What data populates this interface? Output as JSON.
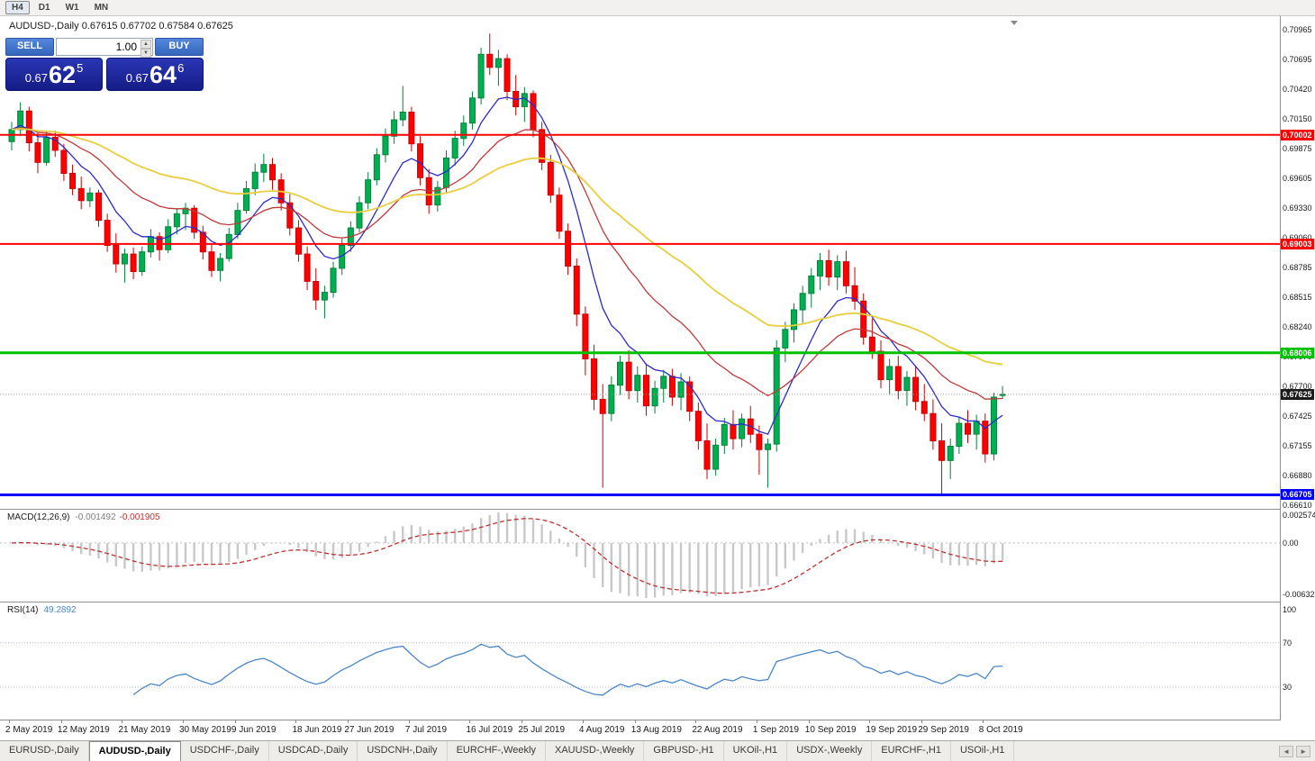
{
  "toolbar": {
    "timeframes": [
      {
        "label": "H4",
        "active": true
      },
      {
        "label": "D1",
        "active": false
      },
      {
        "label": "W1",
        "active": false
      },
      {
        "label": "MN",
        "active": false
      }
    ]
  },
  "chart_header": {
    "symbol_period": "AUDUSD-,Daily",
    "ohlc": "0.67615 0.67702 0.67584 0.67625"
  },
  "trade_panel": {
    "sell_label": "SELL",
    "buy_label": "BUY",
    "volume": "1.00",
    "sell_price": {
      "prefix": "0.67",
      "big": "62",
      "sup": "5"
    },
    "buy_price": {
      "prefix": "0.67",
      "big": "64",
      "sup": "6"
    }
  },
  "main_panel": {
    "price_ticks": [
      "0.70965",
      "0.70695",
      "0.70420",
      "0.70150",
      "0.69875",
      "0.69605",
      "0.69330",
      "0.69060",
      "0.68785",
      "0.68515",
      "0.68240",
      "0.67970",
      "0.67700",
      "0.67425",
      "0.67155",
      "0.66880",
      "0.66610"
    ],
    "hlines": [
      {
        "value": 0.70002,
        "label": "0.70002",
        "color": "#ff0000",
        "width": 2
      },
      {
        "value": 0.69003,
        "label": "0.69003",
        "color": "#ff0000",
        "width": 2
      },
      {
        "value": 0.68006,
        "label": "0.68006",
        "color": "#00c000",
        "width": 3
      },
      {
        "value": 0.66705,
        "label": "0.66705",
        "color": "#0000ff",
        "width": 3
      }
    ],
    "current_price": {
      "value": 0.67625,
      "label": "0.67625",
      "tag_color": "#1a1a1a"
    }
  },
  "macd_panel": {
    "label": "MACD(12,26,9)",
    "main_value": "-0.001492",
    "signal_value": "-0.001905",
    "axis_labels": {
      "max": "0.002574",
      "zero": "0.00",
      "min": "-0.006326"
    }
  },
  "rsi_panel": {
    "label": "RSI(14)",
    "value": "49.2892",
    "axis_labels": [
      {
        "text": "100",
        "value": 100
      },
      {
        "text": "70",
        "value": 70
      },
      {
        "text": "30",
        "value": 30
      }
    ],
    "levels": [
      70,
      30
    ]
  },
  "time_axis": {
    "ticks": [
      {
        "label": "2 May 2019",
        "index": 0
      },
      {
        "label": "12 May 2019",
        "index": 6
      },
      {
        "label": "21 May 2019",
        "index": 13
      },
      {
        "label": "30 May 2019",
        "index": 20
      },
      {
        "label": "9 Jun 2019",
        "index": 26
      },
      {
        "label": "18 Jun 2019",
        "index": 33
      },
      {
        "label": "27 Jun 2019",
        "index": 39
      },
      {
        "label": "7 Jul 2019",
        "index": 46
      },
      {
        "label": "16 Jul 2019",
        "index": 53
      },
      {
        "label": "25 Jul 2019",
        "index": 59
      },
      {
        "label": "4 Aug 2019",
        "index": 66
      },
      {
        "label": "13 Aug 2019",
        "index": 72
      },
      {
        "label": "22 Aug 2019",
        "index": 79
      },
      {
        "label": "1 Sep 2019",
        "index": 86
      },
      {
        "label": "10 Sep 2019",
        "index": 92
      },
      {
        "label": "19 Sep 2019",
        "index": 99
      },
      {
        "label": "29 Sep 2019",
        "index": 105
      },
      {
        "label": "8 Oct 2019",
        "index": 112
      }
    ]
  },
  "tab_bar": {
    "scroll_left_icon": "◄",
    "scroll_right_icon": "►",
    "tabs": [
      {
        "label": "EURUSD-,Daily",
        "active": false
      },
      {
        "label": "AUDUSD-,Daily",
        "active": true
      },
      {
        "label": "USDCHF-,Daily",
        "active": false
      },
      {
        "label": "USDCAD-,Daily",
        "active": false
      },
      {
        "label": "USDCNH-,Daily",
        "active": false
      },
      {
        "label": "EURCHF-,Weekly",
        "active": false
      },
      {
        "label": "XAUUSD-,Weekly",
        "active": false
      },
      {
        "label": "GBPUSD-,H1",
        "active": false
      },
      {
        "label": "UKOil-,H1",
        "active": false
      },
      {
        "label": "USDX-,Weekly",
        "active": false
      },
      {
        "label": "EURCHF-,H1",
        "active": false
      },
      {
        "label": "USOil-,H1",
        "active": false
      }
    ]
  },
  "chart_data": {
    "type": "candlestick",
    "title": "AUDUSD-,Daily",
    "symbol": "AUDUSD-",
    "timeframe": "Daily",
    "ohlc_current": {
      "open": 0.67615,
      "high": 0.67702,
      "low": 0.67584,
      "close": 0.67625
    },
    "ylim": [
      0.66584,
      0.71089
    ],
    "candles": [
      [
        0.6994,
        0.7012,
        0.6986,
        0.7005
      ],
      [
        0.7005,
        0.703,
        0.6999,
        0.7022
      ],
      [
        0.7022,
        0.7026,
        0.6985,
        0.6993
      ],
      [
        0.6993,
        0.7002,
        0.6965,
        0.6975
      ],
      [
        0.6975,
        0.7003,
        0.6972,
        0.6998
      ],
      [
        0.6998,
        0.7004,
        0.698,
        0.6986
      ],
      [
        0.6986,
        0.6992,
        0.6958,
        0.6965
      ],
      [
        0.6965,
        0.6973,
        0.6945,
        0.6951
      ],
      [
        0.6951,
        0.6962,
        0.6932,
        0.694
      ],
      [
        0.694,
        0.6952,
        0.6934,
        0.6947
      ],
      [
        0.6947,
        0.695,
        0.6916,
        0.6922
      ],
      [
        0.6922,
        0.6928,
        0.6893,
        0.6899
      ],
      [
        0.6899,
        0.691,
        0.6874,
        0.6882
      ],
      [
        0.6882,
        0.6896,
        0.6865,
        0.6891
      ],
      [
        0.6891,
        0.6897,
        0.6868,
        0.6875
      ],
      [
        0.6875,
        0.6898,
        0.6871,
        0.6893
      ],
      [
        0.6893,
        0.6914,
        0.6888,
        0.6907
      ],
      [
        0.6907,
        0.6911,
        0.6885,
        0.6895
      ],
      [
        0.6895,
        0.6923,
        0.6892,
        0.6916
      ],
      [
        0.6916,
        0.6933,
        0.6909,
        0.6928
      ],
      [
        0.6928,
        0.6938,
        0.6913,
        0.6933
      ],
      [
        0.6933,
        0.6936,
        0.6905,
        0.6911
      ],
      [
        0.6911,
        0.6917,
        0.6886,
        0.6893
      ],
      [
        0.6893,
        0.6901,
        0.687,
        0.6876
      ],
      [
        0.6876,
        0.6892,
        0.6866,
        0.6887
      ],
      [
        0.6887,
        0.6915,
        0.6884,
        0.6909
      ],
      [
        0.6909,
        0.6938,
        0.6905,
        0.6931
      ],
      [
        0.6931,
        0.6958,
        0.6928,
        0.6951
      ],
      [
        0.6951,
        0.6974,
        0.6945,
        0.6966
      ],
      [
        0.6966,
        0.6983,
        0.6957,
        0.6973
      ],
      [
        0.6973,
        0.6979,
        0.695,
        0.6959
      ],
      [
        0.6959,
        0.6965,
        0.6931,
        0.6938
      ],
      [
        0.6938,
        0.6946,
        0.6908,
        0.6915
      ],
      [
        0.6915,
        0.6922,
        0.6884,
        0.6891
      ],
      [
        0.6891,
        0.6898,
        0.6858,
        0.6866
      ],
      [
        0.6866,
        0.6878,
        0.684,
        0.6849
      ],
      [
        0.6849,
        0.6862,
        0.6832,
        0.6856
      ],
      [
        0.6856,
        0.6884,
        0.6851,
        0.6878
      ],
      [
        0.6878,
        0.6906,
        0.6872,
        0.6899
      ],
      [
        0.6899,
        0.6921,
        0.6893,
        0.6915
      ],
      [
        0.6915,
        0.6944,
        0.6911,
        0.6938
      ],
      [
        0.6938,
        0.6966,
        0.6932,
        0.6959
      ],
      [
        0.6959,
        0.6988,
        0.6954,
        0.6982
      ],
      [
        0.6982,
        0.7006,
        0.6975,
        0.6999
      ],
      [
        0.6999,
        0.7022,
        0.6992,
        0.7014
      ],
      [
        0.7014,
        0.7045,
        0.7008,
        0.7021
      ],
      [
        0.7021,
        0.7026,
        0.6985,
        0.6992
      ],
      [
        0.6992,
        0.6999,
        0.6954,
        0.6961
      ],
      [
        0.6961,
        0.6969,
        0.6928,
        0.6936
      ],
      [
        0.6936,
        0.6958,
        0.693,
        0.6952
      ],
      [
        0.6952,
        0.6986,
        0.6947,
        0.6979
      ],
      [
        0.6979,
        0.7004,
        0.6972,
        0.6997
      ],
      [
        0.6997,
        0.7018,
        0.699,
        0.7011
      ],
      [
        0.7011,
        0.704,
        0.7005,
        0.7034
      ],
      [
        0.7034,
        0.708,
        0.7028,
        0.7074
      ],
      [
        0.7074,
        0.7093,
        0.7055,
        0.7062
      ],
      [
        0.7062,
        0.7078,
        0.7045,
        0.707
      ],
      [
        0.707,
        0.7074,
        0.7032,
        0.704
      ],
      [
        0.704,
        0.7055,
        0.7018,
        0.7026
      ],
      [
        0.7026,
        0.7044,
        0.7012,
        0.7038
      ],
      [
        0.7038,
        0.7041,
        0.6998,
        0.7005
      ],
      [
        0.7005,
        0.7012,
        0.6968,
        0.6975
      ],
      [
        0.6975,
        0.6982,
        0.6938,
        0.6945
      ],
      [
        0.6945,
        0.6952,
        0.6905,
        0.6912
      ],
      [
        0.6912,
        0.6919,
        0.6872,
        0.688
      ],
      [
        0.688,
        0.6887,
        0.6825,
        0.6836
      ],
      [
        0.6836,
        0.6843,
        0.678,
        0.6795
      ],
      [
        0.6795,
        0.6808,
        0.6748,
        0.6758
      ],
      [
        0.6758,
        0.6772,
        0.6677,
        0.6745
      ],
      [
        0.6745,
        0.6779,
        0.6738,
        0.6771
      ],
      [
        0.6771,
        0.6798,
        0.6762,
        0.6792
      ],
      [
        0.6792,
        0.6803,
        0.6758,
        0.6766
      ],
      [
        0.6766,
        0.6788,
        0.6755,
        0.678
      ],
      [
        0.678,
        0.6791,
        0.6743,
        0.6752
      ],
      [
        0.6752,
        0.6775,
        0.6745,
        0.6768
      ],
      [
        0.6768,
        0.6785,
        0.6755,
        0.6779
      ],
      [
        0.6779,
        0.6786,
        0.6752,
        0.676
      ],
      [
        0.676,
        0.6782,
        0.6748,
        0.6774
      ],
      [
        0.6774,
        0.6779,
        0.6738,
        0.6747
      ],
      [
        0.6747,
        0.6755,
        0.6712,
        0.672
      ],
      [
        0.672,
        0.6736,
        0.6685,
        0.6694
      ],
      [
        0.6694,
        0.6722,
        0.6688,
        0.6716
      ],
      [
        0.6716,
        0.6741,
        0.6708,
        0.6735
      ],
      [
        0.6735,
        0.6748,
        0.6712,
        0.6722
      ],
      [
        0.6722,
        0.6745,
        0.6714,
        0.674
      ],
      [
        0.674,
        0.6752,
        0.6718,
        0.6726
      ],
      [
        0.6726,
        0.6734,
        0.6689,
        0.6712
      ],
      [
        0.6712,
        0.6722,
        0.6677,
        0.6717
      ],
      [
        0.6717,
        0.6812,
        0.671,
        0.6805
      ],
      [
        0.6805,
        0.6829,
        0.6792,
        0.6822
      ],
      [
        0.6822,
        0.6846,
        0.681,
        0.684
      ],
      [
        0.684,
        0.6862,
        0.6828,
        0.6855
      ],
      [
        0.6855,
        0.6878,
        0.6842,
        0.6871
      ],
      [
        0.6871,
        0.6892,
        0.6858,
        0.6885
      ],
      [
        0.6885,
        0.6895,
        0.6862,
        0.687
      ],
      [
        0.687,
        0.689,
        0.6858,
        0.6884
      ],
      [
        0.6884,
        0.6894,
        0.6855,
        0.6862
      ],
      [
        0.6862,
        0.6879,
        0.684,
        0.6848
      ],
      [
        0.6848,
        0.6855,
        0.6808,
        0.6815
      ],
      [
        0.6815,
        0.6832,
        0.6795,
        0.6802
      ],
      [
        0.6802,
        0.6812,
        0.6768,
        0.6776
      ],
      [
        0.6776,
        0.6795,
        0.6762,
        0.6788
      ],
      [
        0.6788,
        0.6798,
        0.6758,
        0.6766
      ],
      [
        0.6766,
        0.6784,
        0.6752,
        0.6778
      ],
      [
        0.6778,
        0.6788,
        0.6748,
        0.6756
      ],
      [
        0.6756,
        0.6772,
        0.6738,
        0.6745
      ],
      [
        0.6745,
        0.6758,
        0.6712,
        0.672
      ],
      [
        0.672,
        0.6736,
        0.6671,
        0.6702
      ],
      [
        0.6702,
        0.6722,
        0.6685,
        0.6715
      ],
      [
        0.6715,
        0.6742,
        0.6708,
        0.6736
      ],
      [
        0.6736,
        0.6748,
        0.6718,
        0.6726
      ],
      [
        0.6726,
        0.6744,
        0.6712,
        0.6738
      ],
      [
        0.6738,
        0.6745,
        0.67,
        0.6708
      ],
      [
        0.6708,
        0.6764,
        0.6702,
        0.676
      ],
      [
        0.67615,
        0.67702,
        0.67584,
        0.67625
      ]
    ],
    "moving_averages": [
      {
        "type": "ema",
        "period": 8,
        "color": "#2b2bd0",
        "width": 1.3
      },
      {
        "type": "ema",
        "period": 20,
        "color": "#c03a3a",
        "width": 1.3
      },
      {
        "type": "ema",
        "period": 45,
        "color": "#e8ce3c",
        "width": 1.8
      }
    ],
    "indicators": [
      {
        "name": "MACD",
        "params": [
          12,
          26,
          9
        ],
        "histogram_color": "#c8c8c8",
        "signal_color": "#c03030",
        "signal_style": "dashed"
      },
      {
        "name": "RSI",
        "params": [
          14
        ],
        "color": "#4a86c8",
        "levels": [
          70,
          30
        ]
      }
    ],
    "colors": {
      "bull": "#00b050",
      "bear": "#ff0000",
      "bull_border": "#00813a",
      "bear_border": "#cc0000",
      "background": "#ffffff",
      "current_price_line": "#a0a0a0",
      "separator": "#909090"
    }
  }
}
